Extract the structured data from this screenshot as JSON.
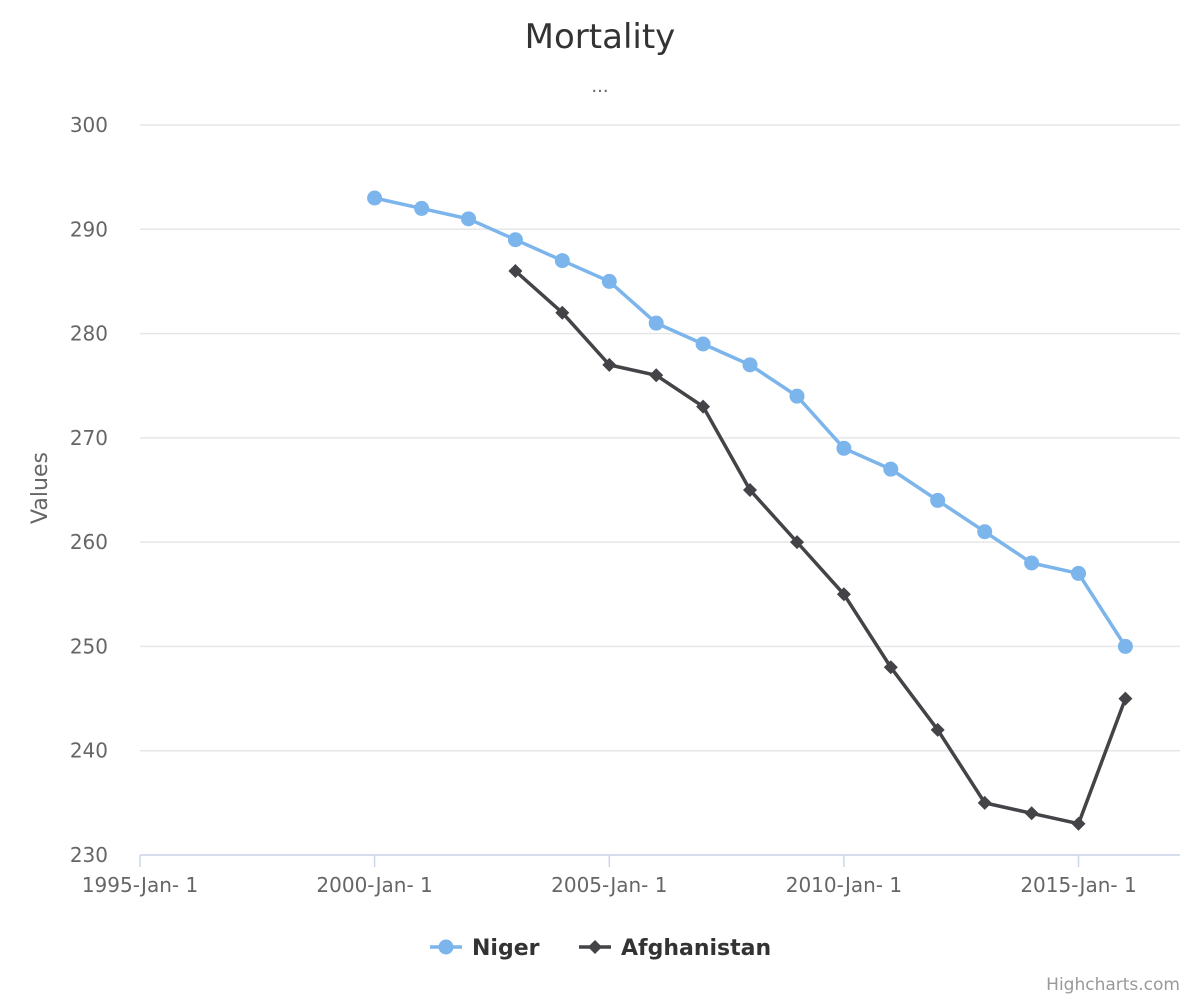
{
  "chart_data": {
    "type": "line",
    "title": "Mortality",
    "subtitle": "...",
    "xlabel": "",
    "ylabel": "Values",
    "ylim": [
      230,
      300
    ],
    "yticks": [
      230,
      240,
      250,
      260,
      270,
      280,
      290,
      300
    ],
    "xlim": [
      "1995-01-01",
      "2017-03-01"
    ],
    "xticks": [
      {
        "date": "1995-01-01",
        "label": "1995-Jan- 1"
      },
      {
        "date": "2000-01-01",
        "label": "2000-Jan- 1"
      },
      {
        "date": "2005-01-01",
        "label": "2005-Jan- 1"
      },
      {
        "date": "2010-01-01",
        "label": "2010-Jan- 1"
      },
      {
        "date": "2015-01-01",
        "label": "2015-Jan- 1"
      }
    ],
    "grid": true,
    "legend_position": "bottom-center",
    "series": [
      {
        "name": "Niger",
        "color": "#7cb5ec",
        "marker": "circle",
        "points": [
          {
            "x": "2000-01-01",
            "y": 293
          },
          {
            "x": "2001-01-01",
            "y": 292
          },
          {
            "x": "2002-01-01",
            "y": 291
          },
          {
            "x": "2003-01-01",
            "y": 289
          },
          {
            "x": "2004-01-01",
            "y": 287
          },
          {
            "x": "2005-01-01",
            "y": 285
          },
          {
            "x": "2006-01-01",
            "y": 281
          },
          {
            "x": "2007-01-01",
            "y": 279
          },
          {
            "x": "2008-01-01",
            "y": 277
          },
          {
            "x": "2009-01-01",
            "y": 274
          },
          {
            "x": "2010-01-01",
            "y": 269
          },
          {
            "x": "2011-01-01",
            "y": 267
          },
          {
            "x": "2012-01-01",
            "y": 264
          },
          {
            "x": "2013-01-01",
            "y": 261
          },
          {
            "x": "2014-01-01",
            "y": 258
          },
          {
            "x": "2015-01-01",
            "y": 257
          },
          {
            "x": "2016-01-01",
            "y": 250
          }
        ]
      },
      {
        "name": "Afghanistan",
        "color": "#434348",
        "marker": "diamond",
        "points": [
          {
            "x": "2003-01-01",
            "y": 286
          },
          {
            "x": "2004-01-01",
            "y": 282
          },
          {
            "x": "2005-01-01",
            "y": 277
          },
          {
            "x": "2006-01-01",
            "y": 276
          },
          {
            "x": "2007-01-01",
            "y": 273
          },
          {
            "x": "2008-01-01",
            "y": 265
          },
          {
            "x": "2009-01-01",
            "y": 260
          },
          {
            "x": "2010-01-01",
            "y": 255
          },
          {
            "x": "2011-01-01",
            "y": 248
          },
          {
            "x": "2012-01-01",
            "y": 242
          },
          {
            "x": "2013-01-01",
            "y": 235
          },
          {
            "x": "2014-01-01",
            "y": 234
          },
          {
            "x": "2015-01-01",
            "y": 233
          },
          {
            "x": "2016-01-01",
            "y": 245
          }
        ]
      }
    ]
  },
  "credits": "Highcharts.com"
}
